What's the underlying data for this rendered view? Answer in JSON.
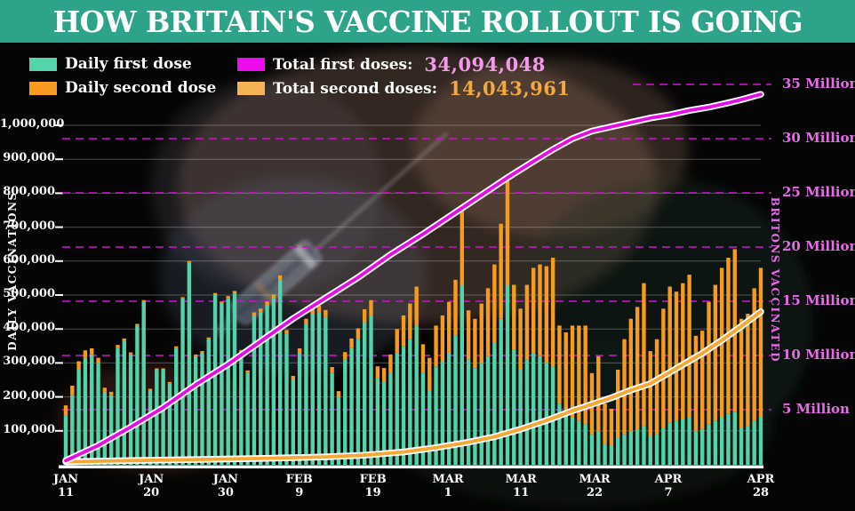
{
  "header": {
    "title": "HOW BRITAIN'S VACCINE ROLLOUT IS GOING",
    "bg_color": "#2da38a"
  },
  "legend": {
    "daily_first": {
      "label": "Daily first dose",
      "swatch": "#55d3ab"
    },
    "daily_second": {
      "label": "Daily second dose",
      "swatch": "#f79a1f"
    },
    "total_first": {
      "label": "Total first doses:",
      "value": "34,094,048",
      "swatch": "#ee0bee",
      "value_color": "#f398ea"
    },
    "total_second": {
      "label": "Total second doses:",
      "value": "14,043,961",
      "swatch": "#f6b355",
      "value_color": "#f2a93f"
    }
  },
  "chart_data": {
    "type": "bar+line",
    "title": "HOW BRITAIN'S VACCINE ROLLOUT IS GOING",
    "date_range": "JAN 11 to APR 28",
    "stacked_bars": true,
    "grid": {
      "left_gridlines": "solid gray per 100,000",
      "right_gridlines": "dashed magenta per 5 million"
    },
    "colors": {
      "bar_first": "#52d3a9",
      "bar_second": "#f59b1e",
      "line_first": "#e60ce6",
      "line_second": "#f7a733",
      "line_outline": "#ffffff",
      "grid_dashed": "#c913c9",
      "grid_solid": "rgba(255,255,255,0.28)"
    },
    "left_axis": {
      "title": "DAILY VACCINATIONS",
      "ticks": [
        {
          "label": "100,000",
          "value": 100
        },
        {
          "label": "200,000",
          "value": 200
        },
        {
          "label": "300,000",
          "value": 300
        },
        {
          "label": "400,000",
          "value": 400
        },
        {
          "label": "500,000",
          "value": 500
        },
        {
          "label": "600,000",
          "value": 600
        },
        {
          "label": "700,000",
          "value": 700
        },
        {
          "label": "800,000",
          "value": 800
        },
        {
          "label": "900,000",
          "value": 900
        },
        {
          "label": "1,000,000",
          "value": 1000
        }
      ]
    },
    "right_axis": {
      "title": "BRITONS VACCINATED",
      "color": "#e46de4",
      "ticks": [
        {
          "label": "5 Million",
          "value": 5
        },
        {
          "label": "10 Million",
          "value": 10
        },
        {
          "label": "15 Million",
          "value": 15
        },
        {
          "label": "20 Million",
          "value": 20
        },
        {
          "label": "25 Million",
          "value": 25
        },
        {
          "label": "30 Million",
          "value": 30
        },
        {
          "label": "35 Million",
          "value": 35
        }
      ]
    },
    "x_ticks": [
      {
        "month": "JAN",
        "day": "11",
        "pos": 0.0
      },
      {
        "month": "JAN",
        "day": "20",
        "pos": 0.123
      },
      {
        "month": "JAN",
        "day": "30",
        "pos": 0.23
      },
      {
        "month": "FEB",
        "day": "9",
        "pos": 0.336
      },
      {
        "month": "FEB",
        "day": "19",
        "pos": 0.442
      },
      {
        "month": "MAR",
        "day": "1",
        "pos": 0.55
      },
      {
        "month": "MAR",
        "day": "11",
        "pos": 0.655
      },
      {
        "month": "MAR",
        "day": "22",
        "pos": 0.761
      },
      {
        "month": "APR",
        "day": "7",
        "pos": 0.867
      },
      {
        "month": "APR",
        "day": "28",
        "pos": 1.0
      }
    ],
    "series": {
      "daily_first_dose_thousands": [
        145,
        205,
        280,
        315,
        325,
        300,
        215,
        205,
        345,
        365,
        325,
        410,
        480,
        220,
        280,
        280,
        240,
        345,
        490,
        595,
        320,
        330,
        370,
        500,
        475,
        490,
        505,
        330,
        270,
        440,
        450,
        470,
        490,
        545,
        385,
        250,
        330,
        415,
        445,
        450,
        435,
        270,
        200,
        310,
        345,
        370,
        420,
        440,
        255,
        245,
        270,
        330,
        350,
        370,
        410,
        270,
        220,
        290,
        305,
        330,
        380,
        530,
        310,
        285,
        300,
        320,
        360,
        430,
        530,
        340,
        280,
        310,
        330,
        320,
        300,
        290,
        180,
        150,
        140,
        130,
        120,
        90,
        100,
        60,
        55,
        80,
        90,
        100,
        105,
        115,
        85,
        90,
        110,
        125,
        130,
        135,
        140,
        100,
        105,
        120,
        130,
        140,
        150,
        155,
        110,
        115,
        130,
        140
      ],
      "daily_second_dose_thousands": [
        30,
        28,
        25,
        22,
        18,
        15,
        12,
        10,
        8,
        7,
        6,
        5,
        5,
        4,
        4,
        4,
        4,
        4,
        4,
        5,
        5,
        5,
        5,
        6,
        6,
        7,
        7,
        8,
        8,
        9,
        10,
        11,
        12,
        13,
        12,
        12,
        13,
        15,
        17,
        19,
        21,
        18,
        17,
        22,
        27,
        32,
        38,
        45,
        35,
        40,
        55,
        70,
        90,
        105,
        115,
        85,
        95,
        120,
        135,
        150,
        165,
        235,
        145,
        145,
        175,
        200,
        230,
        280,
        310,
        190,
        180,
        220,
        250,
        270,
        285,
        320,
        230,
        240,
        270,
        280,
        290,
        180,
        220,
        120,
        110,
        200,
        280,
        330,
        360,
        420,
        250,
        280,
        350,
        400,
        380,
        400,
        420,
        280,
        290,
        360,
        400,
        440,
        460,
        480,
        320,
        330,
        390,
        440
      ]
    },
    "lines": {
      "total_first_doses_millions": [
        [
          0,
          0.3
        ],
        [
          5,
          1.7
        ],
        [
          10,
          3.4
        ],
        [
          15,
          5.2
        ],
        [
          20,
          7.3
        ],
        [
          25,
          9.2
        ],
        [
          30,
          11.3
        ],
        [
          35,
          13.4
        ],
        [
          40,
          15.3
        ],
        [
          45,
          17.2
        ],
        [
          50,
          19.3
        ],
        [
          55,
          21.2
        ],
        [
          60,
          23.2
        ],
        [
          65,
          25.2
        ],
        [
          68,
          26.4
        ],
        [
          72,
          27.9
        ],
        [
          75,
          29.0
        ],
        [
          78,
          30.0
        ],
        [
          81,
          30.7
        ],
        [
          84,
          31.1
        ],
        [
          87,
          31.5
        ],
        [
          90,
          31.9
        ],
        [
          93,
          32.2
        ],
        [
          96,
          32.6
        ],
        [
          99,
          32.9
        ],
        [
          102,
          33.3
        ],
        [
          104,
          33.6
        ],
        [
          107,
          34.09
        ]
      ],
      "total_second_doses_millions": [
        [
          0,
          0.2
        ],
        [
          10,
          0.3
        ],
        [
          20,
          0.4
        ],
        [
          30,
          0.5
        ],
        [
          40,
          0.65
        ],
        [
          46,
          0.8
        ],
        [
          52,
          1.1
        ],
        [
          57,
          1.5
        ],
        [
          62,
          2.0
        ],
        [
          66,
          2.5
        ],
        [
          70,
          3.2
        ],
        [
          74,
          4.0
        ],
        [
          78,
          4.9
        ],
        [
          81,
          5.5
        ],
        [
          84,
          6.1
        ],
        [
          87,
          6.8
        ],
        [
          90,
          7.4
        ],
        [
          94,
          8.8
        ],
        [
          98,
          10.2
        ],
        [
          101,
          11.4
        ],
        [
          104,
          12.7
        ],
        [
          107,
          14.04
        ]
      ],
      "total_first_final": 34094048,
      "total_second_final": 14043961
    }
  }
}
